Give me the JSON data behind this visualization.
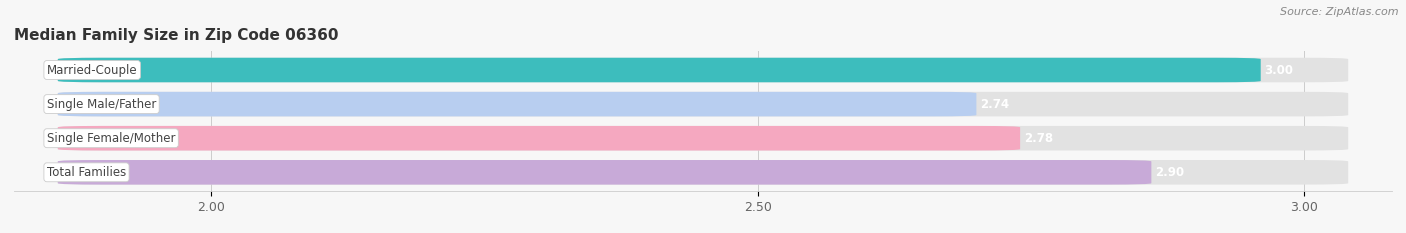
{
  "title": "Median Family Size in Zip Code 06360",
  "source": "Source: ZipAtlas.com",
  "categories": [
    "Married-Couple",
    "Single Male/Father",
    "Single Female/Mother",
    "Total Families"
  ],
  "values": [
    3.0,
    2.74,
    2.78,
    2.9
  ],
  "bar_colors": [
    "#3dbdbd",
    "#b8cef0",
    "#f5a8c0",
    "#c8aad8"
  ],
  "background_color": "#f7f7f7",
  "bar_bg_color": "#e8e8e8",
  "xlim_min": 1.82,
  "xlim_max": 3.08,
  "xticks": [
    2.0,
    2.5,
    3.0
  ],
  "bar_height": 0.72,
  "bar_gap": 0.28,
  "label_fontsize": 8.5,
  "title_fontsize": 11,
  "source_fontsize": 8,
  "value_fontsize": 8.5
}
